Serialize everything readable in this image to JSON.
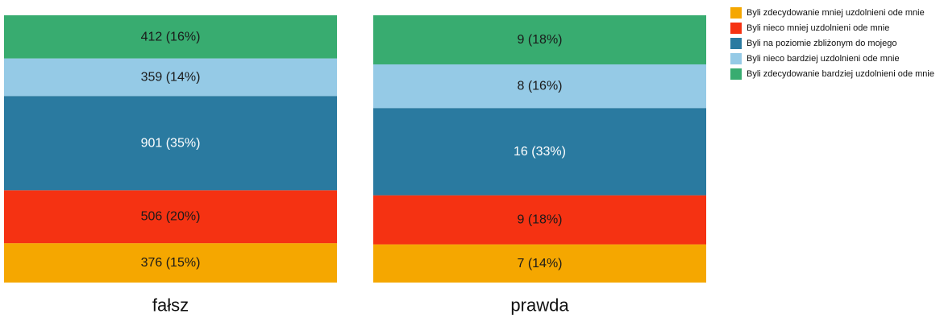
{
  "chart_data": {
    "type": "bar",
    "stacked": "100%",
    "categories": [
      "fałsz",
      "prawda"
    ],
    "series": [
      {
        "name": "Byli zdecydowanie mniej uzdolnieni ode mnie",
        "color": "#F5A700",
        "text_color": "#1a1a1a",
        "values": [
          376,
          7
        ],
        "labels": [
          "376 (15%)",
          "7 (14%)"
        ]
      },
      {
        "name": "Byli nieco mniej uzdolnieni ode mnie",
        "color": "#F53212",
        "text_color": "#1a1a1a",
        "values": [
          506,
          9
        ],
        "labels": [
          "506 (20%)",
          "9 (18%)"
        ]
      },
      {
        "name": "Byli na poziomie zbliżonym do mojego",
        "color": "#2A7AA0",
        "text_color": "#ffffff",
        "values": [
          901,
          16
        ],
        "labels": [
          "901 (35%)",
          "16 (33%)"
        ]
      },
      {
        "name": "Byli nieco bardziej uzdolnieni ode mnie",
        "color": "#95CAE6",
        "text_color": "#1a1a1a",
        "values": [
          359,
          8
        ],
        "labels": [
          "359 (14%)",
          "8 (16%)"
        ]
      },
      {
        "name": "Byli zdecydowanie bardziej uzdolnieni ode mnie",
        "color": "#38AC70",
        "text_color": "#1a1a1a",
        "values": [
          412,
          9
        ],
        "labels": [
          "412 (16%)",
          "9 (18%)"
        ]
      }
    ],
    "legend_position": "top-right",
    "grid": false
  }
}
